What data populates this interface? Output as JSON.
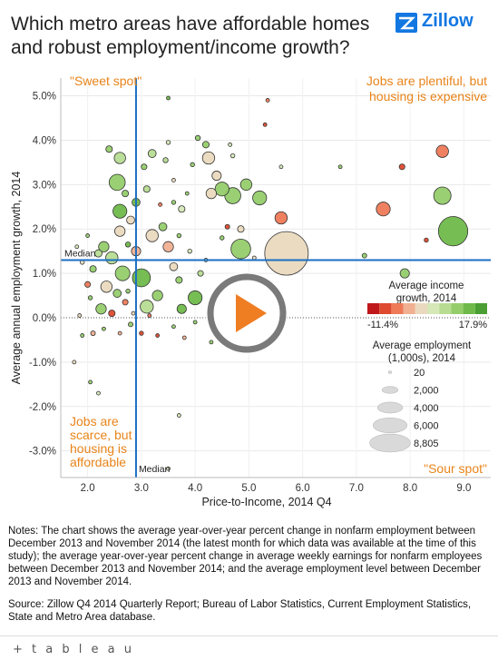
{
  "title": "Which metro areas have affordable homes and robust employment/income growth?",
  "logo": {
    "text": "Zillow",
    "icon": "zillow-z-icon",
    "color": "#1277e1"
  },
  "corners": {
    "top_left": "\"Sweet spot\"",
    "top_right": [
      "Jobs are plentiful, but",
      "housing is expensive"
    ],
    "bottom_left": [
      "Jobs are",
      "scarce, but",
      "housing is",
      "affordable"
    ],
    "bottom_right": "\"Sour spot\""
  },
  "median_labels": {
    "horizontal": "Median",
    "vertical": "Median"
  },
  "legend": {
    "color_title": [
      "Average income",
      "growth, 2014"
    ],
    "color_min": "-11.4%",
    "color_max": "17.9%",
    "colors": [
      "#c0171b",
      "#dd4a2f",
      "#ee7a58",
      "#f0b091",
      "#ead9be",
      "#d6e7b8",
      "#b7dc92",
      "#95cd6b",
      "#6fb94a",
      "#4a9e33"
    ],
    "size_title": [
      "Average employment",
      "(1,000s), 2014"
    ],
    "sizes": [
      "20",
      "2,000",
      "4,000",
      "6,000",
      "8,805"
    ]
  },
  "play_button": {
    "icon": "play-icon",
    "color": "#ef7d22"
  },
  "notes": "Notes: The chart shows the average year-over-year percent change in nonfarm employment between December 2013 and November 2014 (the latest month for which data was available at the time of this study); the average year-over-year percent change in average weekly earnings for nonfarm employees between December 2013 and November 2014; and the average employment level between December 2013 and November 2014.",
  "source": "Source: Zillow Q4 2014 Quarterly Report; Bureau of Labor Statistics, Current Employment Statistics, State and Metro Area database.",
  "footer": {
    "brand": "+ t a b l e a u"
  },
  "chart_data": {
    "type": "scatter",
    "xlabel": "Price-to-Income, 2014 Q4",
    "ylabel": "Average annual employment growth, 2014",
    "xlim": [
      1.5,
      9.5
    ],
    "ylim": [
      -3.6,
      5.4
    ],
    "xticks": [
      2.0,
      3.0,
      4.0,
      5.0,
      6.0,
      7.0,
      8.0,
      9.0
    ],
    "xtick_labels": [
      "2.0",
      "3.0",
      "4.0",
      "5.0",
      "6.0",
      "7.0",
      "8.0",
      "9.0"
    ],
    "yticks": [
      5.0,
      4.0,
      3.0,
      2.0,
      1.0,
      0.0,
      -1.0,
      -2.0,
      -3.0
    ],
    "ytick_labels": [
      "5.0%",
      "4.0%",
      "3.0%",
      "2.0%",
      "1.0%",
      "0.0%",
      "-1.0%",
      "-2.0%",
      "-3.0%"
    ],
    "median_x": 2.9,
    "median_y": 1.3,
    "grid": true,
    "points": [
      {
        "x": 5.7,
        "y": 1.45,
        "size": 8805,
        "c": 4
      },
      {
        "x": 8.8,
        "y": 1.95,
        "size": 4000,
        "c": 8
      },
      {
        "x": 8.6,
        "y": 2.75,
        "size": 1400,
        "c": 7
      },
      {
        "x": 7.5,
        "y": 2.45,
        "size": 900,
        "c": 2
      },
      {
        "x": 8.6,
        "y": 3.75,
        "size": 700,
        "c": 2
      },
      {
        "x": 7.85,
        "y": 3.4,
        "size": 150,
        "c": 1
      },
      {
        "x": 8.3,
        "y": 1.75,
        "size": 80,
        "c": 1
      },
      {
        "x": 7.9,
        "y": 1.0,
        "size": 400,
        "c": 7
      },
      {
        "x": 7.15,
        "y": 1.4,
        "size": 100,
        "c": 7
      },
      {
        "x": 6.7,
        "y": 3.4,
        "size": 60,
        "c": 7
      },
      {
        "x": 5.6,
        "y": 2.25,
        "size": 700,
        "c": 2
      },
      {
        "x": 4.85,
        "y": 1.55,
        "size": 1800,
        "c": 7
      },
      {
        "x": 5.2,
        "y": 2.7,
        "size": 900,
        "c": 7
      },
      {
        "x": 4.95,
        "y": 3.0,
        "size": 600,
        "c": 7
      },
      {
        "x": 4.7,
        "y": 2.75,
        "size": 1200,
        "c": 7
      },
      {
        "x": 4.5,
        "y": 2.9,
        "size": 900,
        "c": 7
      },
      {
        "x": 4.3,
        "y": 2.8,
        "size": 500,
        "c": 4
      },
      {
        "x": 4.25,
        "y": 3.6,
        "size": 700,
        "c": 4
      },
      {
        "x": 4.4,
        "y": 3.2,
        "size": 400,
        "c": 4
      },
      {
        "x": 4.2,
        "y": 3.9,
        "size": 200,
        "c": 7
      },
      {
        "x": 4.05,
        "y": 4.05,
        "size": 120,
        "c": 7
      },
      {
        "x": 4.7,
        "y": 3.65,
        "size": 80,
        "c": 5
      },
      {
        "x": 5.6,
        "y": 3.4,
        "size": 60,
        "c": 5
      },
      {
        "x": 5.3,
        "y": 4.35,
        "size": 40,
        "c": 1
      },
      {
        "x": 5.35,
        "y": 4.9,
        "size": 40,
        "c": 2
      },
      {
        "x": 3.5,
        "y": 4.95,
        "size": 40,
        "c": 8
      },
      {
        "x": 4.85,
        "y": 2.0,
        "size": 200,
        "c": 4
      },
      {
        "x": 4.6,
        "y": 2.05,
        "size": 100,
        "c": 1
      },
      {
        "x": 4.5,
        "y": 1.8,
        "size": 80,
        "c": 7
      },
      {
        "x": 5.1,
        "y": 1.35,
        "size": 60,
        "c": 4
      },
      {
        "x": 4.0,
        "y": 0.45,
        "size": 900,
        "c": 8
      },
      {
        "x": 4.1,
        "y": 1.0,
        "size": 150,
        "c": 6
      },
      {
        "x": 3.7,
        "y": 0.85,
        "size": 200,
        "c": 7
      },
      {
        "x": 3.75,
        "y": 0.2,
        "size": 400,
        "c": 8
      },
      {
        "x": 3.3,
        "y": 0.5,
        "size": 500,
        "c": 7
      },
      {
        "x": 3.0,
        "y": 0.9,
        "size": 1500,
        "c": 8
      },
      {
        "x": 3.1,
        "y": 0.25,
        "size": 800,
        "c": 6
      },
      {
        "x": 2.65,
        "y": 1.0,
        "size": 1000,
        "c": 7
      },
      {
        "x": 2.45,
        "y": 1.35,
        "size": 700,
        "c": 6
      },
      {
        "x": 2.3,
        "y": 1.6,
        "size": 500,
        "c": 7
      },
      {
        "x": 2.6,
        "y": 1.95,
        "size": 500,
        "c": 4
      },
      {
        "x": 2.8,
        "y": 2.2,
        "size": 300,
        "c": 4
      },
      {
        "x": 3.2,
        "y": 1.85,
        "size": 700,
        "c": 4
      },
      {
        "x": 3.5,
        "y": 1.6,
        "size": 500,
        "c": 3
      },
      {
        "x": 3.4,
        "y": 2.05,
        "size": 300,
        "c": 7
      },
      {
        "x": 2.9,
        "y": 2.6,
        "size": 300,
        "c": 8
      },
      {
        "x": 2.6,
        "y": 2.4,
        "size": 900,
        "c": 8
      },
      {
        "x": 2.7,
        "y": 2.8,
        "size": 200,
        "c": 7
      },
      {
        "x": 2.55,
        "y": 3.05,
        "size": 1200,
        "c": 7
      },
      {
        "x": 2.6,
        "y": 3.6,
        "size": 600,
        "c": 6
      },
      {
        "x": 2.4,
        "y": 3.8,
        "size": 200,
        "c": 7
      },
      {
        "x": 3.2,
        "y": 3.7,
        "size": 300,
        "c": 6
      },
      {
        "x": 3.45,
        "y": 3.55,
        "size": 120,
        "c": 6
      },
      {
        "x": 3.5,
        "y": 3.95,
        "size": 80,
        "c": 5
      },
      {
        "x": 3.05,
        "y": 3.4,
        "size": 150,
        "c": 7
      },
      {
        "x": 3.1,
        "y": 2.9,
        "size": 200,
        "c": 6
      },
      {
        "x": 3.6,
        "y": 2.6,
        "size": 80,
        "c": 7
      },
      {
        "x": 3.85,
        "y": 2.8,
        "size": 60,
        "c": 7
      },
      {
        "x": 3.75,
        "y": 2.45,
        "size": 200,
        "c": 5
      },
      {
        "x": 3.35,
        "y": 2.55,
        "size": 60,
        "c": 2
      },
      {
        "x": 3.6,
        "y": 1.15,
        "size": 300,
        "c": 4
      },
      {
        "x": 2.9,
        "y": 1.5,
        "size": 400,
        "c": 3
      },
      {
        "x": 2.35,
        "y": 0.7,
        "size": 600,
        "c": 4
      },
      {
        "x": 2.25,
        "y": 0.2,
        "size": 500,
        "c": 7
      },
      {
        "x": 2.0,
        "y": 0.75,
        "size": 150,
        "c": 2
      },
      {
        "x": 2.1,
        "y": 1.1,
        "size": 200,
        "c": 7
      },
      {
        "x": 2.2,
        "y": 1.45,
        "size": 250,
        "c": 6
      },
      {
        "x": 1.9,
        "y": 1.25,
        "size": 80,
        "c": 4
      },
      {
        "x": 2.45,
        "y": 0.1,
        "size": 200,
        "c": 1
      },
      {
        "x": 2.55,
        "y": 0.55,
        "size": 300,
        "c": 7
      },
      {
        "x": 2.7,
        "y": 0.35,
        "size": 150,
        "c": 2
      },
      {
        "x": 2.8,
        "y": -0.15,
        "size": 100,
        "c": 7
      },
      {
        "x": 2.1,
        "y": -0.35,
        "size": 100,
        "c": 3
      },
      {
        "x": 1.9,
        "y": -0.4,
        "size": 60,
        "c": 7
      },
      {
        "x": 2.3,
        "y": -0.25,
        "size": 60,
        "c": 7
      },
      {
        "x": 2.6,
        "y": -0.35,
        "size": 60,
        "c": 3
      },
      {
        "x": 3.0,
        "y": -0.35,
        "size": 80,
        "c": 1
      },
      {
        "x": 3.3,
        "y": -0.4,
        "size": 60,
        "c": 1
      },
      {
        "x": 3.8,
        "y": -0.45,
        "size": 60,
        "c": 3
      },
      {
        "x": 4.3,
        "y": -0.55,
        "size": 40,
        "c": 7
      },
      {
        "x": 2.05,
        "y": -1.45,
        "size": 40,
        "c": 7
      },
      {
        "x": 2.2,
        "y": -1.7,
        "size": 40,
        "c": 5
      },
      {
        "x": 1.75,
        "y": -1.0,
        "size": 40,
        "c": 4
      },
      {
        "x": 3.5,
        "y": -3.4,
        "size": 30,
        "c": 5
      },
      {
        "x": 3.7,
        "y": -2.2,
        "size": 30,
        "c": 5
      },
      {
        "x": 3.6,
        "y": -0.2,
        "size": 40,
        "c": 7
      },
      {
        "x": 4.0,
        "y": -0.1,
        "size": 40,
        "c": 7
      },
      {
        "x": 3.15,
        "y": 0.05,
        "size": 50,
        "c": 2
      },
      {
        "x": 2.85,
        "y": 0.1,
        "size": 60,
        "c": 4
      },
      {
        "x": 2.75,
        "y": 0.6,
        "size": 80,
        "c": 7
      },
      {
        "x": 2.05,
        "y": 0.45,
        "size": 80,
        "c": 7
      },
      {
        "x": 1.85,
        "y": 0.05,
        "size": 40,
        "c": 4
      },
      {
        "x": 2.0,
        "y": 1.85,
        "size": 40,
        "c": 7
      },
      {
        "x": 1.8,
        "y": 1.6,
        "size": 40,
        "c": 5
      },
      {
        "x": 3.9,
        "y": 1.5,
        "size": 80,
        "c": 5
      },
      {
        "x": 4.2,
        "y": 1.3,
        "size": 40,
        "c": 5
      },
      {
        "x": 3.95,
        "y": 3.45,
        "size": 80,
        "c": 7
      },
      {
        "x": 4.65,
        "y": 3.9,
        "size": 40,
        "c": 5
      },
      {
        "x": 3.6,
        "y": 3.1,
        "size": 50,
        "c": 4
      },
      {
        "x": 2.75,
        "y": 1.65,
        "size": 120,
        "c": 8
      },
      {
        "x": 3.7,
        "y": 1.85,
        "size": 80,
        "c": 7
      }
    ]
  }
}
